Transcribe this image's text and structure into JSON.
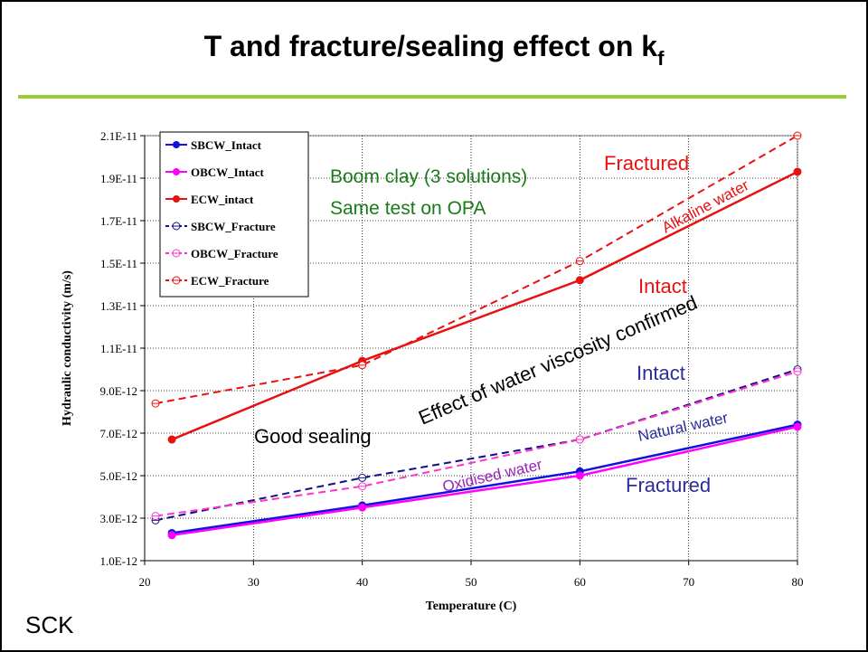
{
  "chart_data": {
    "type": "line",
    "title": "T and fracture/sealing effect on k",
    "title_subscript": "f",
    "footer": "SCK",
    "x_label": "Temperature (C)",
    "y_label": "Hydraulic conductivity (m/s)",
    "xlim": [
      20,
      80
    ],
    "xticks": [
      20,
      30,
      40,
      50,
      60,
      70,
      80
    ],
    "ylim": [
      1e-12,
      2.1e-11
    ],
    "yticks": [
      {
        "value": 1e-12,
        "label": "1.0E-12"
      },
      {
        "value": 3e-12,
        "label": "3.0E-12"
      },
      {
        "value": 5e-12,
        "label": "5.0E-12"
      },
      {
        "value": 7e-12,
        "label": "7.0E-12"
      },
      {
        "value": 9e-12,
        "label": "9.0E-12"
      },
      {
        "value": 1.1e-11,
        "label": "1.1E-11"
      },
      {
        "value": 1.3e-11,
        "label": "1.3E-11"
      },
      {
        "value": 1.5e-11,
        "label": "1.5E-11"
      },
      {
        "value": 1.7e-11,
        "label": "1.7E-11"
      },
      {
        "value": 1.9e-11,
        "label": "1.9E-11"
      },
      {
        "value": 2.1e-11,
        "label": "2.1E-11"
      }
    ],
    "grid": true,
    "legend": "upper left",
    "series": [
      {
        "name": "SBCW_Intact",
        "color": "#1010e0",
        "dashed": false,
        "x": [
          22.5,
          40,
          60,
          80
        ],
        "values": [
          2.3e-12,
          3.6e-12,
          5.2e-12,
          7.4e-12
        ]
      },
      {
        "name": "OBCW_Intact",
        "color": "#ff00ff",
        "dashed": false,
        "x": [
          22.5,
          40,
          60,
          80
        ],
        "values": [
          2.2e-12,
          3.5e-12,
          5e-12,
          7.3e-12
        ]
      },
      {
        "name": "ECW_intact",
        "color": "#e81010",
        "dashed": false,
        "x": [
          22.5,
          40,
          60,
          80
        ],
        "values": [
          6.7e-12,
          1.04e-11,
          1.42e-11,
          1.93e-11
        ]
      },
      {
        "name": "SBCW_Fracture",
        "color": "#101080",
        "dashed": true,
        "x": [
          21,
          40,
          60,
          80
        ],
        "values": [
          2.9e-12,
          4.9e-12,
          6.7e-12,
          1e-11
        ]
      },
      {
        "name": "OBCW_Fracture",
        "color": "#ff33cc",
        "dashed": true,
        "x": [
          21,
          40,
          60,
          80
        ],
        "values": [
          3.1e-12,
          4.5e-12,
          6.7e-12,
          9.9e-12
        ]
      },
      {
        "name": "ECW_Fracture",
        "color": "#e81010",
        "dashed": true,
        "x": [
          21,
          40,
          60,
          80
        ],
        "values": [
          8.4e-12,
          1.02e-11,
          1.51e-11,
          2.1e-11
        ]
      }
    ],
    "annotations": [
      {
        "text": "Boom clay (3 solutions)",
        "color": "#1a7a1a"
      },
      {
        "text": "Same test on OPA",
        "color": "#1a7a1a"
      },
      {
        "text": "Fractured",
        "color": "#e81010"
      },
      {
        "text": "Alkaline water",
        "color": "#e81010"
      },
      {
        "text": "Intact",
        "color": "#e81010"
      },
      {
        "text": "Effect of water viscosity confirmed",
        "color": "#000000"
      },
      {
        "text": "Intact",
        "color": "#2b2b9a"
      },
      {
        "text": "Natural water",
        "color": "#2b2b9a"
      },
      {
        "text": "Good sealing",
        "color": "#000000"
      },
      {
        "text": "Oxidised water",
        "color": "#9922bb"
      },
      {
        "text": "Fractured",
        "color": "#2b2b9a"
      }
    ]
  }
}
